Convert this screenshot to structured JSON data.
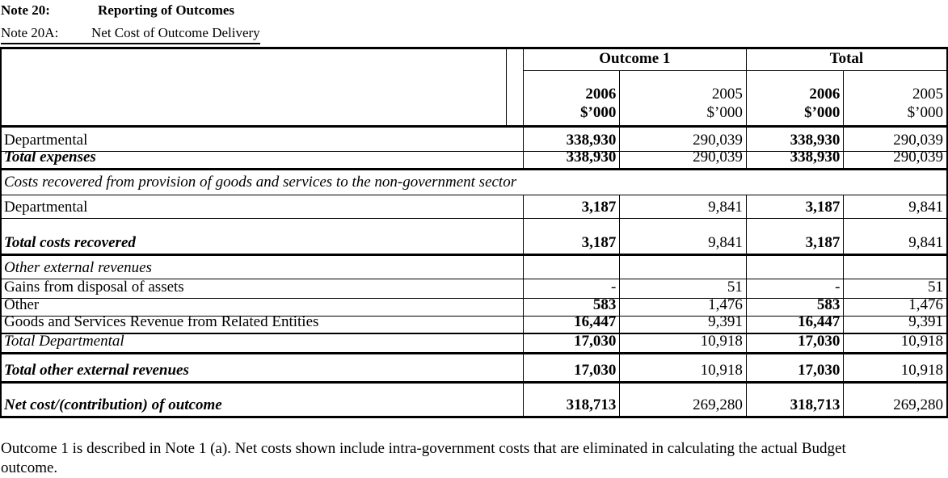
{
  "colors": {
    "ink": "#000000",
    "background": "#ffffff"
  },
  "page": {
    "title_note": "Note 20:",
    "title_text": "Reporting of Outcomes",
    "subtitle_note": "Note 20A:",
    "subtitle_text": "Net Cost of Outcome Delivery"
  },
  "table": {
    "col_groups": [
      {
        "label": "Outcome 1"
      },
      {
        "label": "Total"
      }
    ],
    "sub_headers": [
      {
        "year": "2006",
        "unit": "$’000"
      },
      {
        "year": "2005",
        "unit": "$’000"
      },
      {
        "year": "2006",
        "unit": "$’000"
      },
      {
        "year": "2005",
        "unit": "$’000"
      }
    ],
    "rows": [
      {
        "label": "Departmental",
        "v": [
          "338,930",
          "290,039",
          "338,930",
          "290,039"
        ]
      },
      {
        "label": "Total expenses",
        "v": [
          "338,930",
          "290,039",
          "338,930",
          "290,039"
        ]
      },
      {
        "label": "Costs recovered from provision of goods and services to the non-government sector"
      },
      {
        "label": "Departmental",
        "v": [
          "3,187",
          "9,841",
          "3,187",
          "9,841"
        ]
      },
      {
        "label": "Total costs recovered",
        "v": [
          "3,187",
          "9,841",
          "3,187",
          "9,841"
        ]
      },
      {
        "label": "Other external revenues",
        "v": [
          "",
          "",
          "",
          ""
        ]
      },
      {
        "label": "Gains from disposal of assets",
        "v": [
          "-",
          "51",
          "-",
          "51"
        ]
      },
      {
        "label": "Other",
        "v": [
          "583",
          "1,476",
          "583",
          "1,476"
        ]
      },
      {
        "label": "Goods and Services Revenue from Related Entities",
        "v": [
          "16,447",
          "9,391",
          "16,447",
          "9,391"
        ]
      },
      {
        "label": "Total Departmental",
        "v": [
          "17,030",
          "10,918",
          "17,030",
          "10,918"
        ]
      },
      {
        "label": "Total other external revenues",
        "v": [
          "17,030",
          "10,918",
          "17,030",
          "10,918"
        ]
      },
      {
        "label": "Net cost/(contribution) of outcome",
        "v": [
          "318,713",
          "269,280",
          "318,713",
          "269,280"
        ]
      }
    ],
    "footnote": {
      "line1": "Outcome 1 is described in Note 1 (a). Net costs shown include intra-government costs that are eliminated in calculating the actual Budget",
      "line2": "outcome."
    }
  }
}
